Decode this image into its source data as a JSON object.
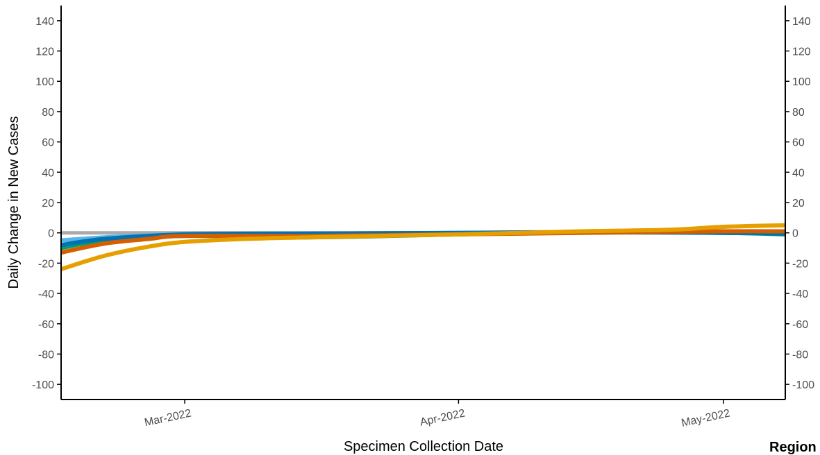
{
  "chart_data": {
    "type": "line",
    "title": "",
    "xlabel": "Specimen Collection Date",
    "ylabel": "Daily Change in New Cases",
    "legend_title": "Region",
    "x_ticks": [
      {
        "date": "2022-03-01",
        "label": "Mar-2022"
      },
      {
        "date": "2022-04-01",
        "label": "Apr-2022"
      },
      {
        "date": "2022-05-01",
        "label": "May-2022"
      }
    ],
    "xlim": [
      "2022-02-15",
      "2022-05-08"
    ],
    "ylim": [
      -110,
      150
    ],
    "y_ticks": [
      -100,
      -80,
      -60,
      -40,
      -20,
      0,
      20,
      40,
      60,
      80,
      100,
      120,
      140
    ],
    "secondary_y_axis": true,
    "grid": false,
    "series": [
      {
        "color": "#aaaaaa",
        "x": [
          "2022-02-15",
          "2022-03-01",
          "2022-04-01",
          "2022-05-01",
          "2022-05-08"
        ],
        "values": [
          0,
          0,
          0,
          0,
          0
        ]
      },
      {
        "color": "#56b4e9",
        "x": [
          "2022-02-15",
          "2022-02-20",
          "2022-03-01",
          "2022-03-15",
          "2022-04-01",
          "2022-04-15",
          "2022-05-01",
          "2022-05-08"
        ],
        "values": [
          -5,
          -3,
          -1,
          -0.5,
          0,
          0.3,
          0,
          0
        ]
      },
      {
        "color": "#009e73",
        "x": [
          "2022-02-15",
          "2022-02-20",
          "2022-03-01",
          "2022-03-15",
          "2022-04-01",
          "2022-04-15",
          "2022-05-01",
          "2022-05-08"
        ],
        "values": [
          -10,
          -5,
          -2,
          -3,
          -1,
          0.5,
          0,
          -1
        ]
      },
      {
        "color": "#0072b2",
        "x": [
          "2022-02-15",
          "2022-02-20",
          "2022-03-01",
          "2022-03-15",
          "2022-04-01",
          "2022-04-15",
          "2022-05-01",
          "2022-05-08"
        ],
        "values": [
          -8,
          -4,
          -1,
          -0.5,
          0,
          0.5,
          0,
          -0.5
        ]
      },
      {
        "color": "#d55e00",
        "x": [
          "2022-02-15",
          "2022-02-20",
          "2022-02-25",
          "2022-03-01",
          "2022-03-15",
          "2022-04-01",
          "2022-04-15",
          "2022-05-01",
          "2022-05-08"
        ],
        "values": [
          -13,
          -7,
          -4,
          -2,
          -2,
          -1,
          0,
          1,
          1
        ]
      },
      {
        "color": "#e69f00",
        "x": [
          "2022-02-15",
          "2022-02-20",
          "2022-02-25",
          "2022-03-01",
          "2022-03-08",
          "2022-03-15",
          "2022-04-01",
          "2022-04-15",
          "2022-04-25",
          "2022-05-01",
          "2022-05-08"
        ],
        "values": [
          -24,
          -15,
          -9,
          -6,
          -4,
          -3,
          -1,
          1,
          2,
          4,
          5
        ]
      }
    ]
  }
}
